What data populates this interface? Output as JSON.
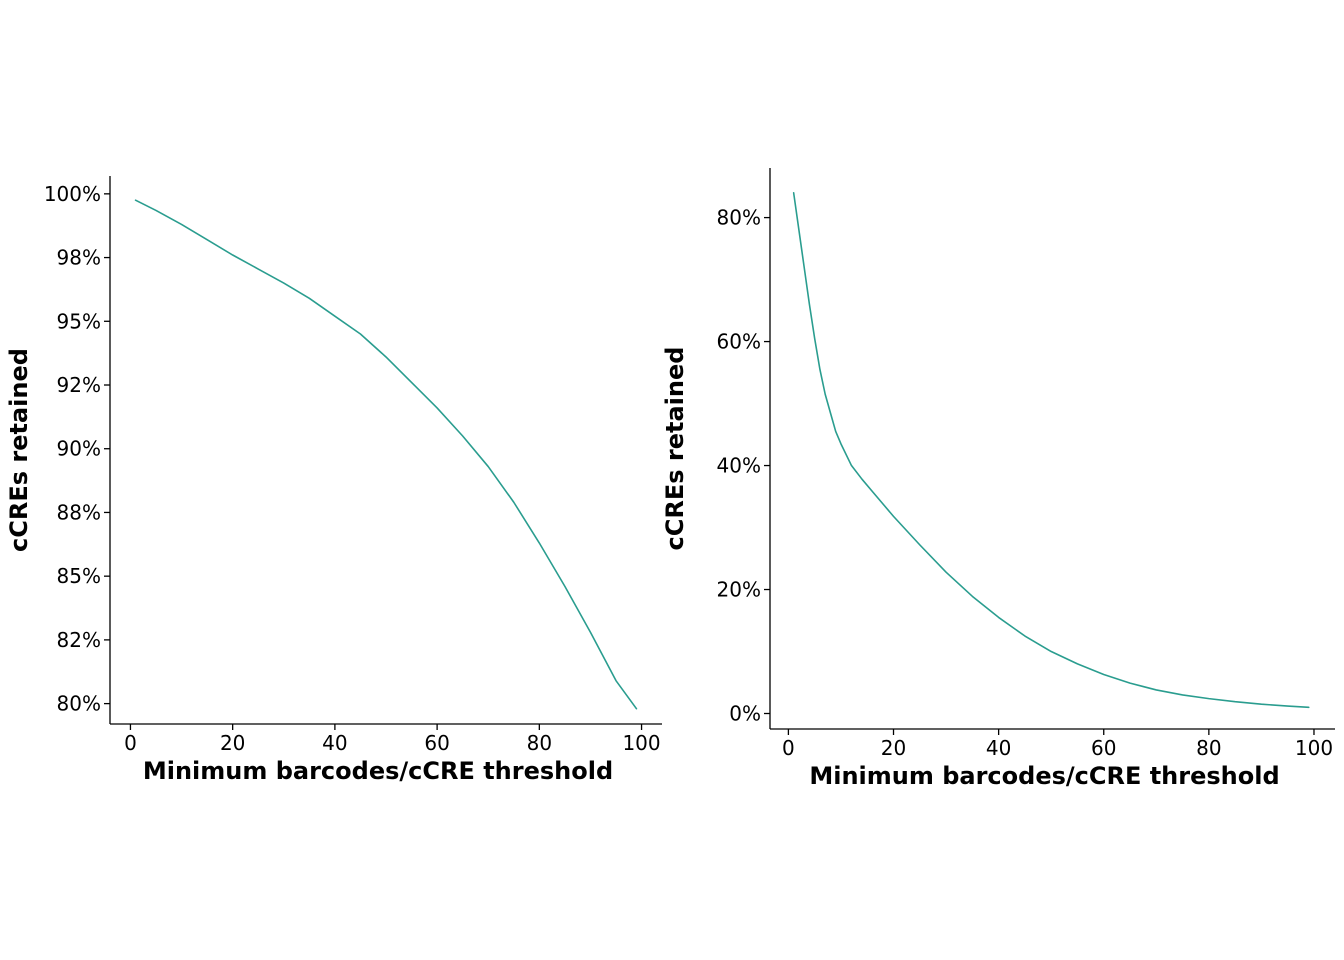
{
  "chart_data": [
    {
      "type": "line",
      "xlabel": "Minimum barcodes/cCRE threshold",
      "ylabel": "cCREs retained",
      "xlim": [
        -4,
        104
      ],
      "ylim": [
        79.2,
        100.7
      ],
      "xticks": [
        0,
        20,
        40,
        60,
        80,
        100
      ],
      "xtick_labels": [
        "0",
        "20",
        "40",
        "60",
        "80",
        "100"
      ],
      "yticks": [
        80,
        82.5,
        85,
        87.5,
        90,
        92.5,
        95,
        97.5,
        100
      ],
      "ytick_labels": [
        "80%",
        "82%",
        "85%",
        "88%",
        "90%",
        "92%",
        "95%",
        "98%",
        "100%"
      ],
      "grid": false,
      "color": "#2a9d8f",
      "series": [
        {
          "x": [
            1,
            5,
            10,
            15,
            20,
            25,
            30,
            35,
            40,
            45,
            50,
            55,
            60,
            65,
            70,
            75,
            80,
            85,
            90,
            95,
            99
          ],
          "values": [
            99.75,
            99.35,
            98.8,
            98.2,
            97.6,
            97.05,
            96.5,
            95.9,
            95.2,
            94.5,
            93.6,
            92.6,
            91.6,
            90.5,
            89.3,
            87.9,
            86.3,
            84.6,
            82.8,
            80.9,
            79.8
          ]
        }
      ]
    },
    {
      "type": "line",
      "xlabel": "Minimum barcodes/cCRE threshold",
      "ylabel": "cCREs retained",
      "xlim": [
        -3.5,
        104
      ],
      "ylim": [
        -2.5,
        88
      ],
      "xticks": [
        0,
        20,
        40,
        60,
        80,
        100
      ],
      "xtick_labels": [
        "0",
        "20",
        "40",
        "60",
        "80",
        "100"
      ],
      "yticks": [
        0,
        20,
        40,
        60,
        80
      ],
      "ytick_labels": [
        "0%",
        "20%",
        "40%",
        "60%",
        "80%"
      ],
      "grid": false,
      "color": "#2a9d8f",
      "series": [
        {
          "x": [
            1,
            2,
            3,
            4,
            5,
            6,
            7,
            8,
            9,
            10,
            12,
            14,
            16,
            18,
            20,
            25,
            30,
            35,
            40,
            45,
            50,
            55,
            60,
            65,
            70,
            75,
            80,
            85,
            90,
            95,
            99
          ],
          "values": [
            84,
            78,
            72,
            66,
            60.5,
            55.5,
            51.5,
            48.5,
            45.5,
            43.5,
            40,
            37.8,
            35.8,
            33.8,
            31.8,
            27.2,
            22.8,
            18.9,
            15.5,
            12.5,
            10,
            8,
            6.3,
            4.9,
            3.8,
            3.0,
            2.4,
            1.9,
            1.5,
            1.2,
            1.0
          ]
        }
      ]
    }
  ]
}
